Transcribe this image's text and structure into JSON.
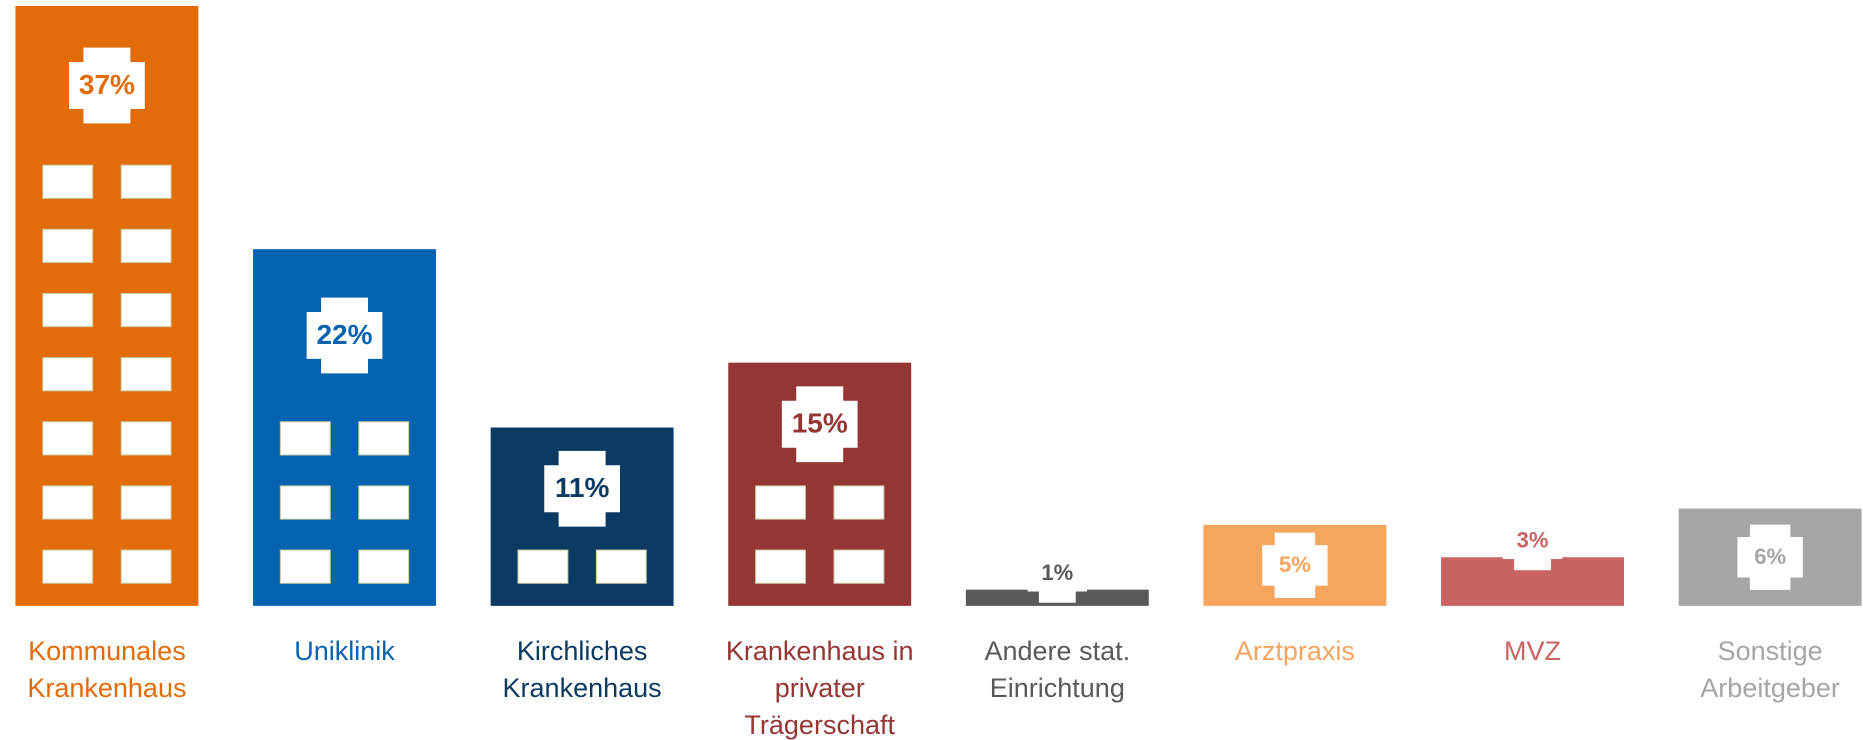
{
  "chart_data": {
    "type": "building-bar",
    "categories": [
      "Kommunales Krankenhaus",
      "Uniklinik",
      "Kirchliches Krankenhaus",
      "Krankenhaus in privater Trägerschaft",
      "Andere stat. Einrichtung",
      "Arztpraxis",
      "MVZ",
      "Sonstige Arbeitgeber"
    ],
    "values": [
      37,
      22,
      11,
      15,
      1,
      5,
      3,
      6
    ],
    "value_labels": [
      "37%",
      "22%",
      "11%",
      "15%",
      "1%",
      "5%",
      "3%",
      "6%"
    ],
    "colors": [
      "#e36c0a",
      "#0563b0",
      "#0b3a62",
      "#943634",
      "#595959",
      "#f6a55f",
      "#c96463",
      "#a6a6a6"
    ]
  }
}
